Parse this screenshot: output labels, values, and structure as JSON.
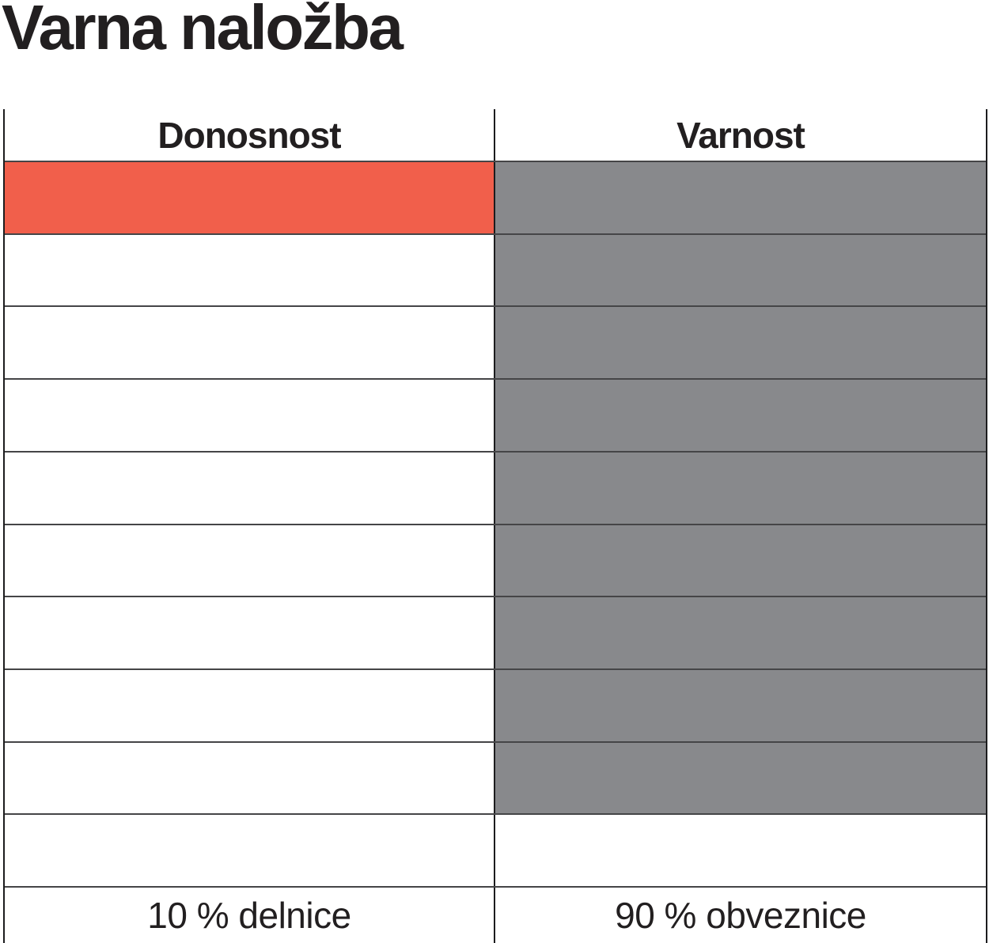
{
  "title": "Varna naložba",
  "colors": {
    "accent_red": "#F15F4B",
    "fill_gray": "#88898C",
    "grid_line": "#454547",
    "frame_line": "#1C1C1E",
    "text": "#221F20"
  },
  "chart_data": {
    "type": "pictograph",
    "title": "Varna naložba",
    "description": "Two-column cell grid comparing return vs safety of a safe investment; 1 of 10 cells filled red for returns, 9 of 10 cells filled gray for safety.",
    "total_cells_per_column": 10,
    "grid": true,
    "columns": [
      {
        "header": "Donosnost",
        "filled_cells": 1,
        "total_cells": 10,
        "percent": 10,
        "fill_color": "#F15F4B",
        "label": "10 % delnice"
      },
      {
        "header": "Varnost",
        "filled_cells": 9,
        "total_cells": 10,
        "percent": 90,
        "fill_color": "#88898C",
        "label": "90 % obveznice"
      }
    ]
  }
}
